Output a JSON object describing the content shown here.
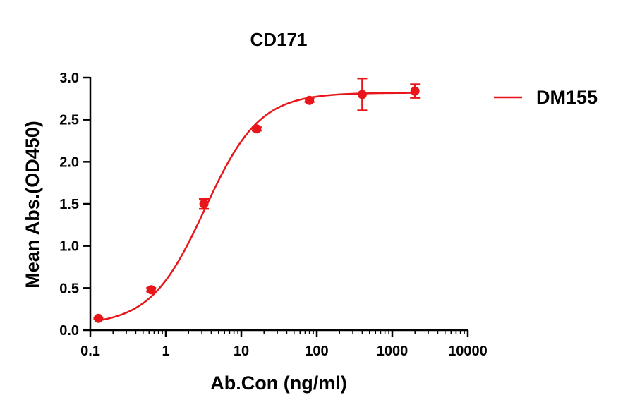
{
  "chart_data": {
    "type": "scatter",
    "title": "CD171",
    "xlabel": "Ab.Con (ng/ml)",
    "ylabel": "Mean Abs.(OD450)",
    "x_scale": "log",
    "xlim": [
      0.1,
      10000
    ],
    "ylim": [
      0.0,
      3.0
    ],
    "x_ticks": [
      0.1,
      1,
      10,
      100,
      1000,
      10000
    ],
    "x_tick_labels": [
      "0.1",
      "1",
      "10",
      "100",
      "1000",
      "10000"
    ],
    "y_ticks": [
      0.0,
      0.5,
      1.0,
      1.5,
      2.0,
      2.5,
      3.0
    ],
    "y_tick_labels": [
      "0.0",
      "0.5",
      "1.0",
      "1.5",
      "2.0",
      "2.5",
      "3.0"
    ],
    "grid": false,
    "legend_position": "right",
    "series": [
      {
        "name": "DM155",
        "color": "#e8161a",
        "x": [
          0.128,
          0.64,
          3.2,
          16,
          80,
          400,
          2000
        ],
        "y": [
          0.14,
          0.48,
          1.5,
          2.39,
          2.73,
          2.8,
          2.84
        ],
        "error": [
          0.01,
          0.02,
          0.06,
          0.02,
          0.02,
          0.19,
          0.08
        ],
        "fit": {
          "model": "4PL",
          "bottom": 0.06,
          "top": 2.82,
          "ec50": 3.3,
          "hill": 1.2
        }
      }
    ]
  }
}
